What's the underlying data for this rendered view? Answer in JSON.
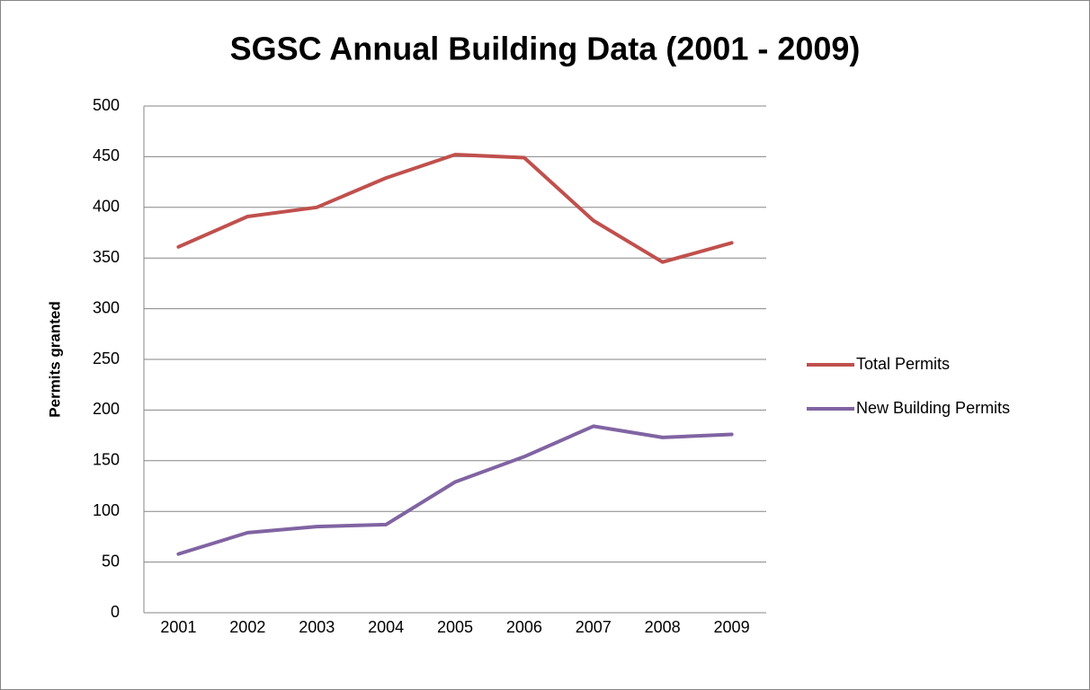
{
  "chart_data": {
    "type": "line",
    "title": "SGSC Annual Building Data (2001 - 2009)",
    "y_label": "Permits granted",
    "categories": [
      "2001",
      "2002",
      "2003",
      "2004",
      "2005",
      "2006",
      "2007",
      "2008",
      "2009"
    ],
    "series": [
      {
        "name": "Total Permits",
        "color": "#c0504d",
        "values": [
          361,
          391,
          400,
          429,
          452,
          449,
          387,
          346,
          365
        ]
      },
      {
        "name": "New Building Permits",
        "color": "#8064a2",
        "values": [
          58,
          79,
          85,
          87,
          129,
          154,
          184,
          173,
          176
        ]
      }
    ],
    "ylim": [
      0,
      500
    ],
    "yticks": [
      0,
      50,
      100,
      150,
      200,
      250,
      300,
      350,
      400,
      450,
      500
    ],
    "grid": true,
    "legend": "right"
  }
}
